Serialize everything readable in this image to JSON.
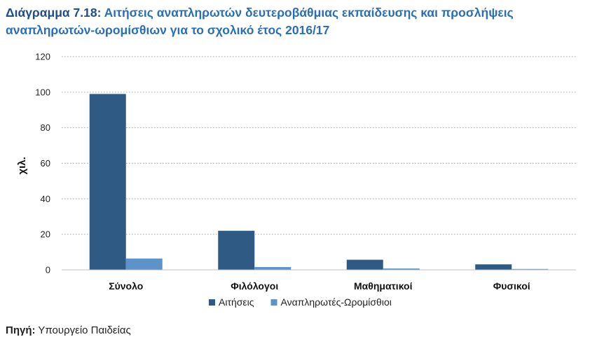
{
  "title": {
    "label": "Διάγραμμα 7.18:",
    "text": "Αιτήσεις αναπληρωτών δευτεροβάθμιας εκπαίδευσης και προσλήψεις αναπληρωτών-ωρομίσθιων για το σχολικό έτος 2016/17"
  },
  "source": {
    "label": "Πηγή:",
    "text": "Υπουργείο Παιδείας"
  },
  "colors": {
    "series_dark": "#2f5a84",
    "series_light": "#5d93c8",
    "gridline": "#a6a6a6",
    "axis": "#bfbfbf"
  },
  "chart_data": {
    "type": "bar",
    "categories": [
      "Σύνολο",
      "Φιλόλογοι",
      "Μαθηματικοί",
      "Φυσικοί"
    ],
    "series": [
      {
        "name": "Αιτήσεις",
        "values": [
          99,
          22,
          5.7,
          3.1
        ]
      },
      {
        "name": "Αναπληρωτές-Ωρομίσθιοι",
        "values": [
          6.4,
          1.6,
          0.8,
          0.5
        ]
      }
    ],
    "ylabel": "χιλ.",
    "xlabel": "",
    "ylim": [
      0,
      120
    ],
    "yticks": [
      0,
      20,
      40,
      60,
      80,
      100,
      120
    ],
    "grid": true,
    "legend": "bottom"
  }
}
